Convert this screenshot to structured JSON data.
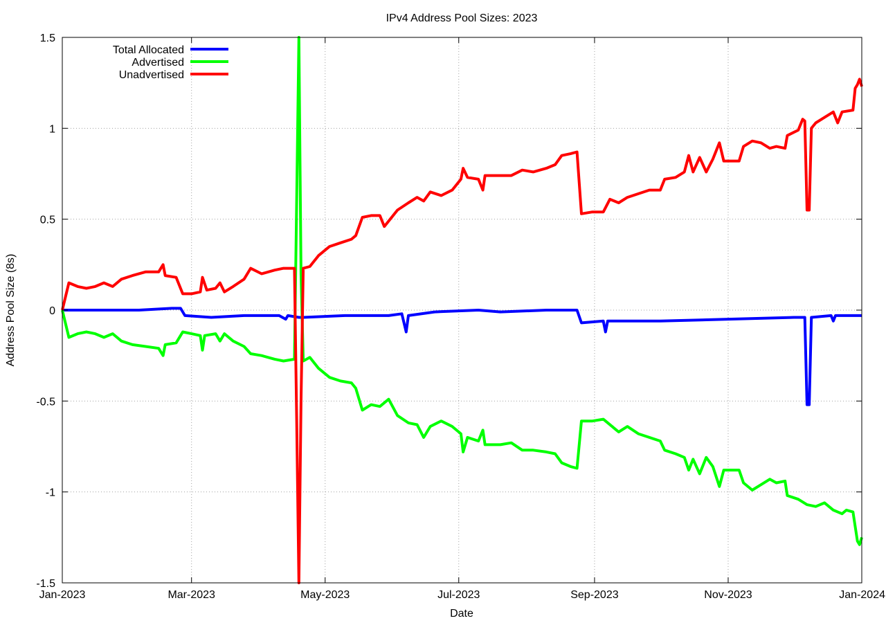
{
  "chart_data": {
    "type": "line",
    "title": "IPv4 Address Pool Sizes: 2023",
    "xlabel": "Date",
    "ylabel": "Address Pool Size (8s)",
    "xlim": [
      "2023-01-01",
      "2024-01-01"
    ],
    "ylim": [
      -1.5,
      1.5
    ],
    "grid": true,
    "legend_position": "top-left",
    "x_ticks": [
      {
        "date": "2023-01-01",
        "label": "Jan-2023"
      },
      {
        "date": "2023-03-01",
        "label": "Mar-2023"
      },
      {
        "date": "2023-05-01",
        "label": "May-2023"
      },
      {
        "date": "2023-07-01",
        "label": "Jul-2023"
      },
      {
        "date": "2023-09-01",
        "label": "Sep-2023"
      },
      {
        "date": "2023-11-01",
        "label": "Nov-2023"
      },
      {
        "date": "2024-01-01",
        "label": "Jan-2024"
      }
    ],
    "y_ticks": [
      {
        "value": 1.5,
        "label": "1.5"
      },
      {
        "value": 1,
        "label": "1"
      },
      {
        "value": 0.5,
        "label": "0.5"
      },
      {
        "value": 0,
        "label": "0"
      },
      {
        "value": -0.5,
        "label": "-0.5"
      },
      {
        "value": -1,
        "label": "-1"
      },
      {
        "value": -1.5,
        "label": "-1.5"
      }
    ],
    "series": [
      {
        "name": "Total Allocated",
        "color": "#0000ff",
        "points": [
          [
            "2023-01-01",
            0
          ],
          [
            "2023-01-04",
            0
          ],
          [
            "2023-01-20",
            0.0
          ],
          [
            "2023-02-05",
            0.0
          ],
          [
            "2023-02-20",
            0.01
          ],
          [
            "2023-02-24",
            0.01
          ],
          [
            "2023-02-26",
            -0.03
          ],
          [
            "2023-03-10",
            -0.04
          ],
          [
            "2023-03-25",
            -0.03
          ],
          [
            "2023-04-10",
            -0.03
          ],
          [
            "2023-04-13",
            -0.05
          ],
          [
            "2023-04-14",
            -0.03
          ],
          [
            "2023-04-19",
            -0.04
          ],
          [
            "2023-04-20",
            -0.04
          ],
          [
            "2023-04-21",
            -0.04
          ],
          [
            "2023-05-10",
            -0.03
          ],
          [
            "2023-05-30",
            -0.03
          ],
          [
            "2023-06-05",
            -0.02
          ],
          [
            "2023-06-07",
            -0.12
          ],
          [
            "2023-06-08",
            -0.03
          ],
          [
            "2023-06-20",
            -0.01
          ],
          [
            "2023-07-10",
            0.0
          ],
          [
            "2023-07-20",
            -0.01
          ],
          [
            "2023-08-10",
            0.0
          ],
          [
            "2023-08-24",
            0.0
          ],
          [
            "2023-08-26",
            -0.07
          ],
          [
            "2023-09-05",
            -0.06
          ],
          [
            "2023-09-06",
            -0.12
          ],
          [
            "2023-09-07",
            -0.06
          ],
          [
            "2023-10-01",
            -0.06
          ],
          [
            "2023-11-01",
            -0.05
          ],
          [
            "2023-12-01",
            -0.04
          ],
          [
            "2023-12-06",
            -0.04
          ],
          [
            "2023-12-07",
            -0.52
          ],
          [
            "2023-12-08",
            -0.52
          ],
          [
            "2023-12-09",
            -0.04
          ],
          [
            "2023-12-18",
            -0.03
          ],
          [
            "2023-12-19",
            -0.06
          ],
          [
            "2023-12-20",
            -0.03
          ],
          [
            "2024-01-01",
            -0.03
          ]
        ]
      },
      {
        "name": "Advertised",
        "color": "#00ff00",
        "points": [
          [
            "2023-01-01",
            0
          ],
          [
            "2023-01-04",
            -0.15
          ],
          [
            "2023-01-08",
            -0.13
          ],
          [
            "2023-01-12",
            -0.12
          ],
          [
            "2023-01-16",
            -0.13
          ],
          [
            "2023-01-20",
            -0.15
          ],
          [
            "2023-01-24",
            -0.13
          ],
          [
            "2023-01-28",
            -0.17
          ],
          [
            "2023-02-02",
            -0.19
          ],
          [
            "2023-02-08",
            -0.2
          ],
          [
            "2023-02-14",
            -0.21
          ],
          [
            "2023-02-16",
            -0.25
          ],
          [
            "2023-02-17",
            -0.19
          ],
          [
            "2023-02-22",
            -0.18
          ],
          [
            "2023-02-25",
            -0.12
          ],
          [
            "2023-03-01",
            -0.13
          ],
          [
            "2023-03-05",
            -0.14
          ],
          [
            "2023-03-06",
            -0.22
          ],
          [
            "2023-03-07",
            -0.14
          ],
          [
            "2023-03-12",
            -0.13
          ],
          [
            "2023-03-14",
            -0.17
          ],
          [
            "2023-03-16",
            -0.13
          ],
          [
            "2023-03-20",
            -0.17
          ],
          [
            "2023-03-25",
            -0.2
          ],
          [
            "2023-03-28",
            -0.24
          ],
          [
            "2023-04-02",
            -0.25
          ],
          [
            "2023-04-08",
            -0.27
          ],
          [
            "2023-04-12",
            -0.28
          ],
          [
            "2023-04-17",
            -0.27
          ],
          [
            "2023-04-18",
            0.6
          ],
          [
            "2023-04-19",
            1.5
          ],
          [
            "2023-04-20",
            0.2
          ],
          [
            "2023-04-21",
            -0.28
          ],
          [
            "2023-04-24",
            -0.26
          ],
          [
            "2023-04-28",
            -0.32
          ],
          [
            "2023-05-03",
            -0.37
          ],
          [
            "2023-05-08",
            -0.39
          ],
          [
            "2023-05-13",
            -0.4
          ],
          [
            "2023-05-15",
            -0.43
          ],
          [
            "2023-05-18",
            -0.55
          ],
          [
            "2023-05-22",
            -0.52
          ],
          [
            "2023-05-26",
            -0.53
          ],
          [
            "2023-05-30",
            -0.49
          ],
          [
            "2023-06-03",
            -0.58
          ],
          [
            "2023-06-08",
            -0.62
          ],
          [
            "2023-06-12",
            -0.63
          ],
          [
            "2023-06-15",
            -0.7
          ],
          [
            "2023-06-18",
            -0.64
          ],
          [
            "2023-06-23",
            -0.61
          ],
          [
            "2023-06-28",
            -0.64
          ],
          [
            "2023-07-02",
            -0.68
          ],
          [
            "2023-07-03",
            -0.78
          ],
          [
            "2023-07-05",
            -0.7
          ],
          [
            "2023-07-10",
            -0.72
          ],
          [
            "2023-07-12",
            -0.66
          ],
          [
            "2023-07-13",
            -0.74
          ],
          [
            "2023-07-20",
            -0.74
          ],
          [
            "2023-07-25",
            -0.73
          ],
          [
            "2023-07-30",
            -0.77
          ],
          [
            "2023-08-04",
            -0.77
          ],
          [
            "2023-08-10",
            -0.78
          ],
          [
            "2023-08-14",
            -0.79
          ],
          [
            "2023-08-17",
            -0.84
          ],
          [
            "2023-08-21",
            -0.86
          ],
          [
            "2023-08-24",
            -0.87
          ],
          [
            "2023-08-26",
            -0.61
          ],
          [
            "2023-08-31",
            -0.61
          ],
          [
            "2023-09-05",
            -0.6
          ],
          [
            "2023-09-09",
            -0.64
          ],
          [
            "2023-09-12",
            -0.67
          ],
          [
            "2023-09-16",
            -0.64
          ],
          [
            "2023-09-21",
            -0.68
          ],
          [
            "2023-09-26",
            -0.7
          ],
          [
            "2023-10-01",
            -0.72
          ],
          [
            "2023-10-03",
            -0.77
          ],
          [
            "2023-10-08",
            -0.79
          ],
          [
            "2023-10-12",
            -0.81
          ],
          [
            "2023-10-14",
            -0.88
          ],
          [
            "2023-10-16",
            -0.82
          ],
          [
            "2023-10-19",
            -0.9
          ],
          [
            "2023-10-22",
            -0.81
          ],
          [
            "2023-10-25",
            -0.86
          ],
          [
            "2023-10-28",
            -0.97
          ],
          [
            "2023-10-30",
            -0.88
          ],
          [
            "2023-11-06",
            -0.88
          ],
          [
            "2023-11-08",
            -0.95
          ],
          [
            "2023-11-12",
            -0.99
          ],
          [
            "2023-11-16",
            -0.96
          ],
          [
            "2023-11-20",
            -0.93
          ],
          [
            "2023-11-23",
            -0.95
          ],
          [
            "2023-11-27",
            -0.94
          ],
          [
            "2023-11-28",
            -1.02
          ],
          [
            "2023-12-03",
            -1.04
          ],
          [
            "2023-12-07",
            -1.07
          ],
          [
            "2023-12-11",
            -1.08
          ],
          [
            "2023-12-15",
            -1.06
          ],
          [
            "2023-12-19",
            -1.1
          ],
          [
            "2023-12-23",
            -1.12
          ],
          [
            "2023-12-25",
            -1.1
          ],
          [
            "2023-12-28",
            -1.11
          ],
          [
            "2023-12-30",
            -1.27
          ],
          [
            "2023-12-31",
            -1.29
          ],
          [
            "2024-01-01",
            -1.25
          ]
        ]
      },
      {
        "name": "Unadvertised",
        "color": "#ff0000",
        "points": [
          [
            "2023-01-01",
            0
          ],
          [
            "2023-01-04",
            0.15
          ],
          [
            "2023-01-08",
            0.13
          ],
          [
            "2023-01-12",
            0.12
          ],
          [
            "2023-01-16",
            0.13
          ],
          [
            "2023-01-20",
            0.15
          ],
          [
            "2023-01-24",
            0.13
          ],
          [
            "2023-01-28",
            0.17
          ],
          [
            "2023-02-02",
            0.19
          ],
          [
            "2023-02-08",
            0.21
          ],
          [
            "2023-02-14",
            0.21
          ],
          [
            "2023-02-16",
            0.25
          ],
          [
            "2023-02-17",
            0.19
          ],
          [
            "2023-02-22",
            0.18
          ],
          [
            "2023-02-25",
            0.09
          ],
          [
            "2023-03-01",
            0.09
          ],
          [
            "2023-03-05",
            0.1
          ],
          [
            "2023-03-06",
            0.18
          ],
          [
            "2023-03-08",
            0.11
          ],
          [
            "2023-03-12",
            0.12
          ],
          [
            "2023-03-14",
            0.15
          ],
          [
            "2023-03-16",
            0.1
          ],
          [
            "2023-03-20",
            0.13
          ],
          [
            "2023-03-25",
            0.17
          ],
          [
            "2023-03-28",
            0.23
          ],
          [
            "2023-04-02",
            0.2
          ],
          [
            "2023-04-08",
            0.22
          ],
          [
            "2023-04-12",
            0.23
          ],
          [
            "2023-04-17",
            0.23
          ],
          [
            "2023-04-18",
            -0.6
          ],
          [
            "2023-04-19",
            -1.5
          ],
          [
            "2023-04-20",
            -0.5
          ],
          [
            "2023-04-21",
            0.23
          ],
          [
            "2023-04-24",
            0.24
          ],
          [
            "2023-04-28",
            0.3
          ],
          [
            "2023-05-03",
            0.35
          ],
          [
            "2023-05-08",
            0.37
          ],
          [
            "2023-05-13",
            0.39
          ],
          [
            "2023-05-15",
            0.41
          ],
          [
            "2023-05-18",
            0.51
          ],
          [
            "2023-05-22",
            0.52
          ],
          [
            "2023-05-26",
            0.52
          ],
          [
            "2023-05-28",
            0.46
          ],
          [
            "2023-06-03",
            0.55
          ],
          [
            "2023-06-08",
            0.59
          ],
          [
            "2023-06-12",
            0.62
          ],
          [
            "2023-06-15",
            0.6
          ],
          [
            "2023-06-18",
            0.65
          ],
          [
            "2023-06-23",
            0.63
          ],
          [
            "2023-06-28",
            0.66
          ],
          [
            "2023-07-02",
            0.72
          ],
          [
            "2023-07-03",
            0.78
          ],
          [
            "2023-07-05",
            0.73
          ],
          [
            "2023-07-10",
            0.72
          ],
          [
            "2023-07-12",
            0.66
          ],
          [
            "2023-07-13",
            0.74
          ],
          [
            "2023-07-20",
            0.74
          ],
          [
            "2023-07-25",
            0.74
          ],
          [
            "2023-07-30",
            0.77
          ],
          [
            "2023-08-04",
            0.76
          ],
          [
            "2023-08-10",
            0.78
          ],
          [
            "2023-08-14",
            0.8
          ],
          [
            "2023-08-17",
            0.85
          ],
          [
            "2023-08-21",
            0.86
          ],
          [
            "2023-08-24",
            0.87
          ],
          [
            "2023-08-26",
            0.53
          ],
          [
            "2023-08-31",
            0.54
          ],
          [
            "2023-09-05",
            0.54
          ],
          [
            "2023-09-08",
            0.61
          ],
          [
            "2023-09-12",
            0.59
          ],
          [
            "2023-09-16",
            0.62
          ],
          [
            "2023-09-21",
            0.64
          ],
          [
            "2023-09-26",
            0.66
          ],
          [
            "2023-10-01",
            0.66
          ],
          [
            "2023-10-03",
            0.72
          ],
          [
            "2023-10-08",
            0.73
          ],
          [
            "2023-10-12",
            0.76
          ],
          [
            "2023-10-14",
            0.85
          ],
          [
            "2023-10-16",
            0.76
          ],
          [
            "2023-10-19",
            0.84
          ],
          [
            "2023-10-22",
            0.76
          ],
          [
            "2023-10-25",
            0.83
          ],
          [
            "2023-10-28",
            0.92
          ],
          [
            "2023-10-30",
            0.82
          ],
          [
            "2023-11-06",
            0.82
          ],
          [
            "2023-11-08",
            0.9
          ],
          [
            "2023-11-12",
            0.93
          ],
          [
            "2023-11-16",
            0.92
          ],
          [
            "2023-11-20",
            0.89
          ],
          [
            "2023-11-23",
            0.9
          ],
          [
            "2023-11-27",
            0.89
          ],
          [
            "2023-11-28",
            0.96
          ],
          [
            "2023-12-03",
            0.99
          ],
          [
            "2023-12-05",
            1.05
          ],
          [
            "2023-12-06",
            1.04
          ],
          [
            "2023-12-07",
            0.55
          ],
          [
            "2023-12-08",
            0.55
          ],
          [
            "2023-12-09",
            1.0
          ],
          [
            "2023-12-11",
            1.03
          ],
          [
            "2023-12-15",
            1.06
          ],
          [
            "2023-12-19",
            1.09
          ],
          [
            "2023-12-21",
            1.03
          ],
          [
            "2023-12-23",
            1.09
          ],
          [
            "2023-12-28",
            1.1
          ],
          [
            "2023-12-29",
            1.22
          ],
          [
            "2023-12-30",
            1.24
          ],
          [
            "2023-12-31",
            1.27
          ],
          [
            "2024-01-01",
            1.23
          ]
        ]
      }
    ]
  }
}
